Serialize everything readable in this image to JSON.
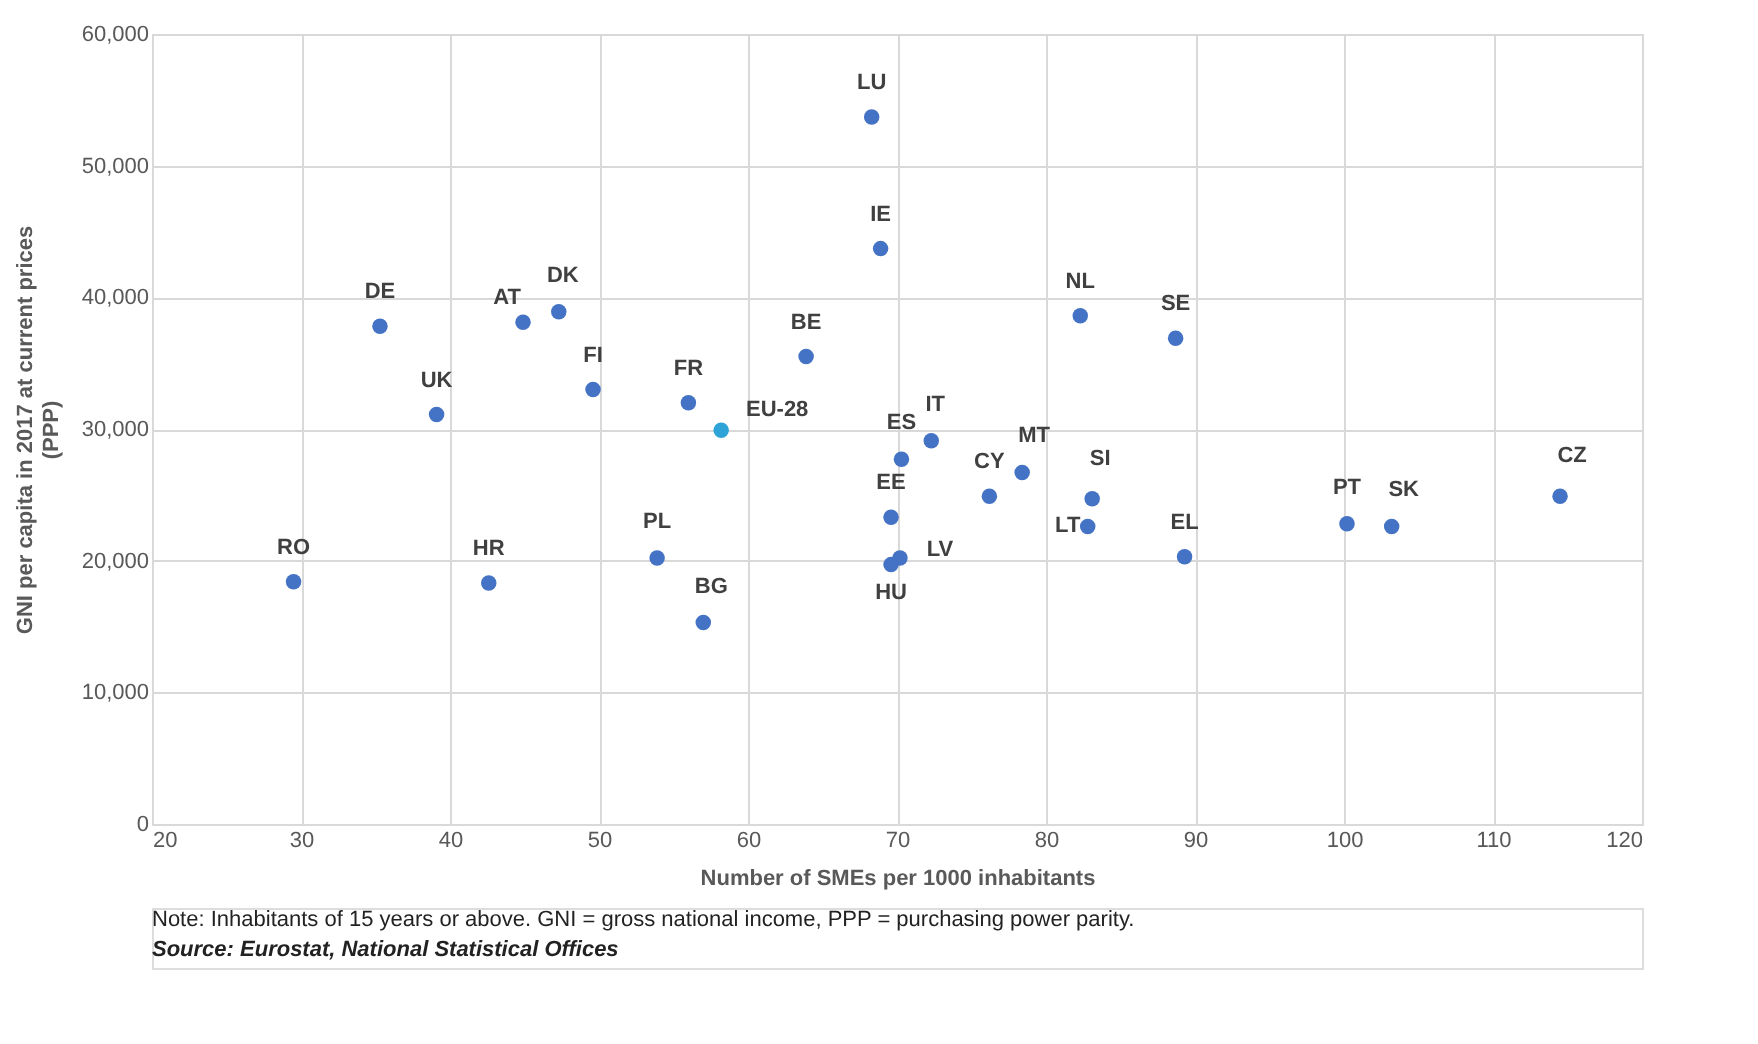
{
  "chart_data": {
    "type": "scatter",
    "xlabel": "Number of SMEs per 1000 inhabitants",
    "ylabel": "GNI per capita in 2017 at current prices\n(PPP)",
    "x": [
      29.5,
      35.3,
      39.1,
      44.9,
      47.3,
      49.6,
      56.0,
      58.2,
      42.6,
      53.9,
      57.0,
      68.3,
      68.9,
      63.9,
      82.3,
      88.7,
      70.3,
      72.3,
      76.2,
      78.4,
      83.1,
      82.8,
      69.6,
      70.2,
      69.6,
      89.3,
      100.2,
      103.2,
      114.5
    ],
    "values": [
      18400,
      37800,
      31100,
      38100,
      38900,
      33000,
      32000,
      29900,
      18300,
      20200,
      15300,
      53700,
      43700,
      35500,
      38600,
      36900,
      27700,
      29100,
      24900,
      26700,
      24700,
      22600,
      23300,
      20200,
      19700,
      20300,
      22800,
      22600,
      24900
    ],
    "value_labels": [
      "RO",
      "DE",
      "UK",
      "AT",
      "DK",
      "FI",
      "FR",
      "EU-28",
      "HR",
      "PL",
      "BG",
      "LU",
      "IE",
      "BE",
      "NL",
      "SE",
      "ES",
      "IT",
      "CY",
      "MT",
      "SI",
      "LT",
      "EE",
      "LV",
      "HU",
      "EL",
      "PT",
      "SK",
      "CZ"
    ],
    "colors": [
      "#4472c4",
      "#4472c4",
      "#4472c4",
      "#4472c4",
      "#4472c4",
      "#4472c4",
      "#4472c4",
      "#2ea3d8",
      "#4472c4",
      "#4472c4",
      "#4472c4",
      "#4472c4",
      "#4472c4",
      "#4472c4",
      "#4472c4",
      "#4472c4",
      "#4472c4",
      "#4472c4",
      "#4472c4",
      "#4472c4",
      "#4472c4",
      "#4472c4",
      "#4472c4",
      "#4472c4",
      "#4472c4",
      "#4472c4",
      "#4472c4",
      "#4472c4",
      "#4472c4"
    ],
    "xlim": [
      20,
      120
    ],
    "xticks": [
      20,
      30,
      40,
      50,
      60,
      70,
      80,
      90,
      100,
      110,
      120
    ],
    "ylim": [
      0,
      60000
    ],
    "yticks": [
      0,
      {
        "value": 10000,
        "label": "10,000"
      },
      {
        "value": 20000,
        "label": "20,000"
      },
      {
        "value": 30000,
        "label": "30,000"
      },
      {
        "value": 40000,
        "label": "40,000"
      },
      {
        "value": 50000,
        "label": "50,000"
      },
      {
        "value": 60000,
        "label": "60,000"
      }
    ],
    "grid": true,
    "marker": "circle",
    "annotations": [
      "Note: Inhabitants of 15 years or above. GNI = gross national income, PPP = purchasing power parity.",
      "Source: Eurostat, National Statistical Offices"
    ]
  }
}
